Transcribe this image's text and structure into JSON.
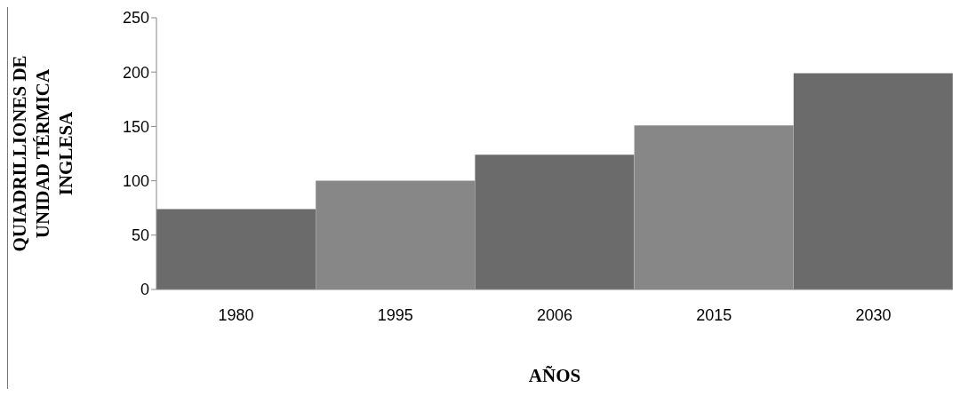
{
  "chart_data": {
    "type": "bar",
    "categories": [
      "1980",
      "1995",
      "2006",
      "2015",
      "2030"
    ],
    "values": [
      74,
      100,
      124,
      151,
      199
    ],
    "colors": [
      "#6b6b6b",
      "#878787",
      "#6b6b6b",
      "#878787",
      "#6b6b6b"
    ],
    "ylim": [
      0,
      250
    ],
    "yticks": [
      0,
      50,
      100,
      150,
      200,
      250
    ],
    "xlabel": "AÑOS",
    "ylabel": "QUIADRILLIONES DE\nUNIDAD TÉRMICA\nINGLESA",
    "grid": false,
    "legend": false
  }
}
